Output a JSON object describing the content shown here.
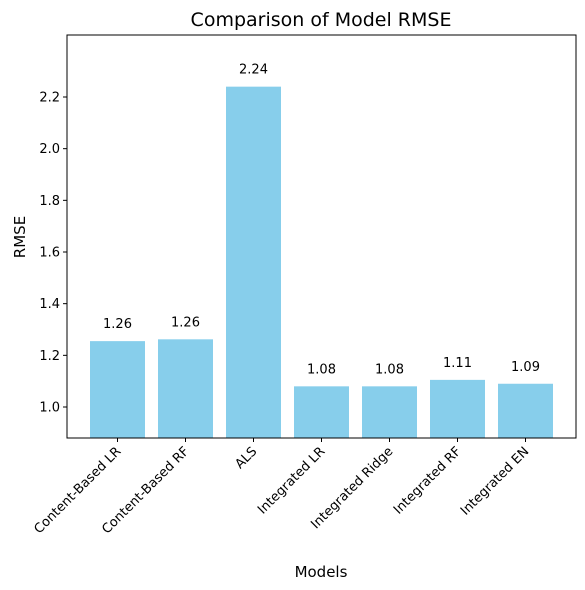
{
  "chart_data": {
    "type": "bar",
    "title": "Comparison of Model RMSE",
    "xlabel": "Models",
    "ylabel": "RMSE",
    "categories": [
      "Content-Based LR",
      "Content-Based RF",
      "ALS",
      "Integrated LR",
      "Integrated Ridge",
      "Integrated RF",
      "Integrated EN"
    ],
    "values": [
      1.255,
      1.262,
      2.24,
      1.08,
      1.08,
      1.105,
      1.09
    ],
    "value_labels": [
      "1.26",
      "1.26",
      "2.24",
      "1.08",
      "1.08",
      "1.11",
      "1.09"
    ],
    "ylim": [
      0.88,
      2.44
    ],
    "yticks": [
      1.0,
      1.2,
      1.4,
      1.6,
      1.8,
      2.0,
      2.2
    ],
    "ytick_labels": [
      "1.0",
      "1.2",
      "1.4",
      "1.6",
      "1.8",
      "2.0",
      "2.2"
    ],
    "bar_color": "#87ceeb",
    "grid": false,
    "legend": false
  }
}
